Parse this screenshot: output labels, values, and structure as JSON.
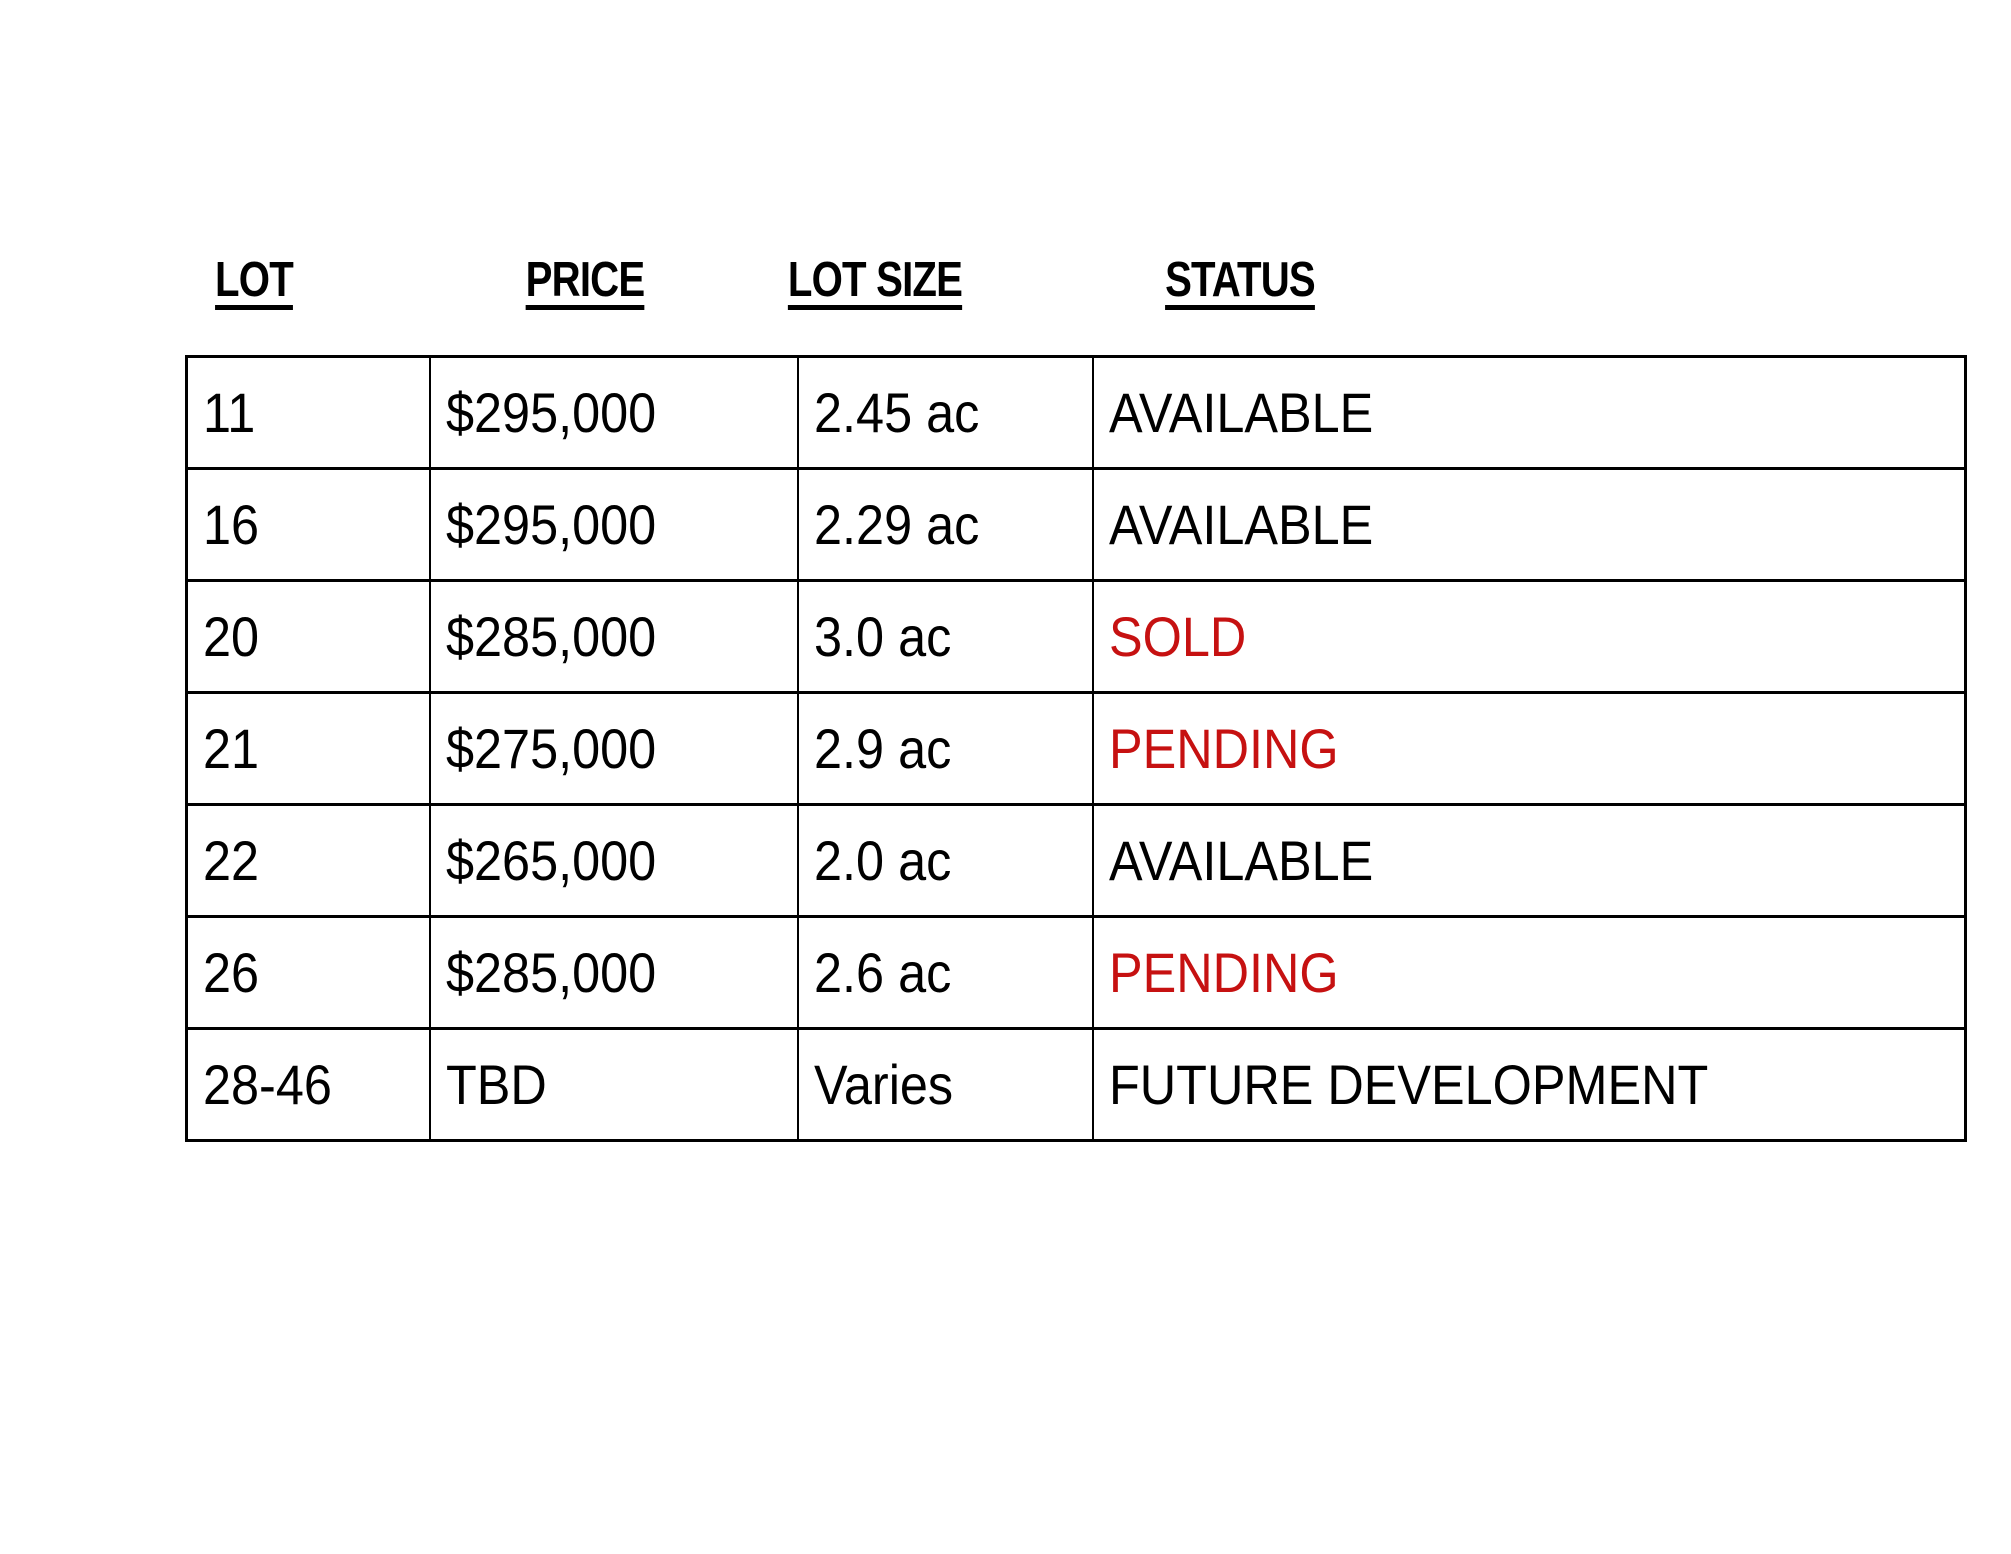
{
  "colors": {
    "text": "#000000",
    "alert": "#c61111",
    "border": "#000000",
    "background": "#ffffff"
  },
  "header": {
    "columns": [
      {
        "label": "LOT"
      },
      {
        "label": "PRICE"
      },
      {
        "label": "LOT SIZE"
      },
      {
        "label": "STATUS"
      }
    ]
  },
  "table": {
    "rows": [
      {
        "lot": "11",
        "price": "$295,000",
        "size": "2.45 ac",
        "status": "AVAILABLE",
        "status_color": "#000000"
      },
      {
        "lot": "16",
        "price": "$295,000",
        "size": "2.29 ac",
        "status": "AVAILABLE",
        "status_color": "#000000"
      },
      {
        "lot": "20",
        "price": "$285,000",
        "size": "3.0 ac",
        "status": "SOLD",
        "status_color": "#c61111"
      },
      {
        "lot": "21",
        "price": "$275,000",
        "size": "2.9 ac",
        "status": "PENDING",
        "status_color": "#c61111"
      },
      {
        "lot": "22",
        "price": "$265,000",
        "size": "2.0 ac",
        "status": "AVAILABLE",
        "status_color": "#000000"
      },
      {
        "lot": "26",
        "price": "$285,000",
        "size": "2.6 ac",
        "status": "PENDING",
        "status_color": "#c61111"
      },
      {
        "lot": "28-46",
        "price": "TBD",
        "size": "Varies",
        "status": "FUTURE DEVELOPMENT",
        "status_color": "#000000"
      }
    ]
  },
  "chart_data": {
    "type": "table",
    "title": "",
    "columns": [
      "LOT",
      "PRICE",
      "LOT SIZE",
      "STATUS"
    ],
    "rows": [
      [
        "11",
        "$295,000",
        "2.45 ac",
        "AVAILABLE"
      ],
      [
        "16",
        "$295,000",
        "2.29 ac",
        "AVAILABLE"
      ],
      [
        "20",
        "$285,000",
        "3.0 ac",
        "SOLD"
      ],
      [
        "21",
        "$275,000",
        "2.9 ac",
        "PENDING"
      ],
      [
        "22",
        "$265,000",
        "2.0 ac",
        "AVAILABLE"
      ],
      [
        "26",
        "$285,000",
        "2.6 ac",
        "PENDING"
      ],
      [
        "28-46",
        "TBD",
        "Varies",
        "FUTURE DEVELOPMENT"
      ]
    ]
  }
}
